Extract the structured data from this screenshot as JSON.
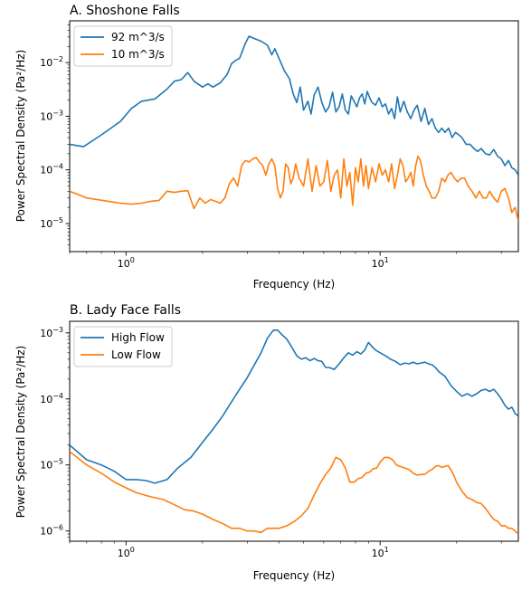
{
  "chart_data": [
    {
      "type": "line",
      "title": "A. Shoshone Falls",
      "xlabel": "Frequency (Hz)",
      "ylabel": "Power Spectral Density (Pa²/Hz)",
      "xscale": "log",
      "yscale": "log",
      "xlim": [
        0.6,
        35
      ],
      "ylim": [
        3e-06,
        0.06
      ],
      "x_tick_labels": [
        {
          "value": 1,
          "base": "10",
          "exp": "0"
        },
        {
          "value": 10,
          "base": "10",
          "exp": "1"
        }
      ],
      "y_tick_labels": [
        {
          "value": 1e-05,
          "base": "10",
          "exp": "−5"
        },
        {
          "value": 0.0001,
          "base": "10",
          "exp": "−4"
        },
        {
          "value": 0.001,
          "base": "10",
          "exp": "−3"
        },
        {
          "value": 0.01,
          "base": "10",
          "exp": "−2"
        }
      ],
      "legend_position": "top-left",
      "series": [
        {
          "name": "92 m^3/s",
          "color": "#1f77b4",
          "x": [
            0.6,
            0.68,
            0.8,
            0.95,
            1.05,
            1.15,
            1.3,
            1.45,
            1.55,
            1.65,
            1.75,
            1.85,
            2.0,
            2.1,
            2.2,
            2.35,
            2.5,
            2.6,
            2.7,
            2.8,
            2.95,
            3.05,
            3.2,
            3.4,
            3.6,
            3.75,
            3.85,
            4.0,
            4.2,
            4.4,
            4.55,
            4.7,
            4.85,
            5.0,
            5.2,
            5.35,
            5.5,
            5.7,
            5.9,
            6.1,
            6.3,
            6.5,
            6.7,
            6.9,
            7.1,
            7.3,
            7.5,
            7.7,
            7.9,
            8.1,
            8.3,
            8.5,
            8.7,
            8.9,
            9.1,
            9.3,
            9.6,
            9.9,
            10.2,
            10.5,
            10.8,
            11.1,
            11.4,
            11.7,
            12.0,
            12.4,
            12.8,
            13.2,
            13.6,
            14.0,
            14.5,
            15.0,
            15.5,
            16.0,
            16.5,
            17.0,
            17.5,
            18.0,
            18.6,
            19.2,
            19.8,
            20.4,
            21.0,
            21.8,
            22.6,
            23.4,
            24.2,
            25.0,
            26.0,
            27.0,
            28.0,
            29.0,
            30.0,
            31.0,
            32.0,
            33.0,
            34.0,
            35.0
          ],
          "y": [
            0.0003,
            0.00027,
            0.00045,
            0.0008,
            0.0014,
            0.0019,
            0.0021,
            0.0032,
            0.0045,
            0.0048,
            0.0065,
            0.0045,
            0.0035,
            0.004,
            0.0035,
            0.0042,
            0.006,
            0.0095,
            0.011,
            0.012,
            0.023,
            0.031,
            0.028,
            0.025,
            0.021,
            0.014,
            0.018,
            0.012,
            0.007,
            0.005,
            0.0026,
            0.0018,
            0.0035,
            0.0013,
            0.0019,
            0.0011,
            0.0025,
            0.0035,
            0.0018,
            0.0012,
            0.0015,
            0.0028,
            0.0012,
            0.0015,
            0.0026,
            0.0013,
            0.0011,
            0.0024,
            0.0019,
            0.0015,
            0.0022,
            0.0026,
            0.0017,
            0.0029,
            0.0022,
            0.0018,
            0.0016,
            0.0022,
            0.0015,
            0.0017,
            0.0011,
            0.0014,
            0.0009,
            0.0023,
            0.0012,
            0.0019,
            0.0012,
            0.0009,
            0.0013,
            0.0016,
            0.0008,
            0.0014,
            0.0007,
            0.0009,
            0.0006,
            0.0005,
            0.0006,
            0.0005,
            0.0006,
            0.0004,
            0.0005,
            0.00045,
            0.0004,
            0.0003,
            0.0003,
            0.00025,
            0.00022,
            0.00025,
            0.0002,
            0.00019,
            0.00024,
            0.00018,
            0.00016,
            0.00012,
            0.00015,
            0.00011,
            0.0001,
            8e-05
          ]
        },
        {
          "name": "10 m^3/s",
          "color": "#ff7f0e",
          "x": [
            0.6,
            0.7,
            0.85,
            0.95,
            1.05,
            1.15,
            1.25,
            1.35,
            1.45,
            1.55,
            1.65,
            1.75,
            1.85,
            1.95,
            2.05,
            2.15,
            2.25,
            2.35,
            2.45,
            2.55,
            2.65,
            2.75,
            2.85,
            2.95,
            3.05,
            3.15,
            3.25,
            3.35,
            3.45,
            3.55,
            3.65,
            3.75,
            3.85,
            3.95,
            4.05,
            4.15,
            4.25,
            4.35,
            4.45,
            4.55,
            4.65,
            4.8,
            5.0,
            5.2,
            5.4,
            5.6,
            5.8,
            6.0,
            6.2,
            6.4,
            6.6,
            6.8,
            7.0,
            7.2,
            7.4,
            7.6,
            7.8,
            8.0,
            8.2,
            8.4,
            8.6,
            8.8,
            9.0,
            9.3,
            9.6,
            9.9,
            10.2,
            10.5,
            10.8,
            11.1,
            11.4,
            11.7,
            12.0,
            12.3,
            12.6,
            12.9,
            13.2,
            13.5,
            13.8,
            14.1,
            14.4,
            14.8,
            15.2,
            15.6,
            16.0,
            16.5,
            17.0,
            17.5,
            18.0,
            18.5,
            19.0,
            19.6,
            20.2,
            20.8,
            21.5,
            22.2,
            23.0,
            23.8,
            24.6,
            25.4,
            26.2,
            27.0,
            28.0,
            29.0,
            30.0,
            31.0,
            32.0,
            33.0,
            34.0,
            35.0
          ],
          "y": [
            4e-05,
            3e-05,
            2.6e-05,
            2.4e-05,
            2.3e-05,
            2.4e-05,
            2.6e-05,
            2.7e-05,
            4e-05,
            3.8e-05,
            4e-05,
            4.1e-05,
            1.9e-05,
            3e-05,
            2.4e-05,
            2.8e-05,
            2.6e-05,
            2.4e-05,
            3e-05,
            5.5e-05,
            7e-05,
            5e-05,
            0.00012,
            0.00015,
            0.00014,
            0.00016,
            0.00017,
            0.00014,
            0.00012,
            8e-05,
            0.00013,
            0.00016,
            0.00012,
            4.5e-05,
            3e-05,
            4e-05,
            0.00013,
            0.00011,
            5.5e-05,
            7e-05,
            0.00013,
            7e-05,
            5e-05,
            0.00016,
            4e-05,
            0.00012,
            5e-05,
            6e-05,
            0.00015,
            4e-05,
            8e-05,
            0.0001,
            3e-05,
            0.00016,
            5e-05,
            9e-05,
            2.2e-05,
            0.00011,
            6e-05,
            0.00016,
            5e-05,
            0.00012,
            4.5e-05,
            0.00011,
            6e-05,
            0.00013,
            8e-05,
            0.0001,
            6e-05,
            0.00013,
            4.5e-05,
            8e-05,
            0.00016,
            0.00012,
            6e-05,
            7e-05,
            9e-05,
            5e-05,
            0.00012,
            0.00018,
            0.00015,
            8e-05,
            5e-05,
            4e-05,
            3e-05,
            3e-05,
            4e-05,
            7e-05,
            6e-05,
            8e-05,
            9e-05,
            7e-05,
            6e-05,
            7e-05,
            7e-05,
            5e-05,
            4e-05,
            3e-05,
            4e-05,
            3e-05,
            3e-05,
            4e-05,
            3e-05,
            2.5e-05,
            4e-05,
            4.5e-05,
            3e-05,
            1.6e-05,
            2e-05,
            1.1e-05
          ]
        }
      ]
    },
    {
      "type": "line",
      "title": "B. Lady Face Falls",
      "xlabel": "Frequency (Hz)",
      "ylabel": "Power Spectral Density (Pa²/Hz)",
      "xscale": "log",
      "yscale": "log",
      "xlim": [
        0.6,
        35
      ],
      "ylim": [
        7e-07,
        0.0015
      ],
      "x_tick_labels": [
        {
          "value": 1,
          "base": "10",
          "exp": "0"
        },
        {
          "value": 10,
          "base": "10",
          "exp": "1"
        }
      ],
      "y_tick_labels": [
        {
          "value": 1e-06,
          "base": "10",
          "exp": "−6"
        },
        {
          "value": 1e-05,
          "base": "10",
          "exp": "−5"
        },
        {
          "value": 0.0001,
          "base": "10",
          "exp": "−4"
        },
        {
          "value": 0.001,
          "base": "10",
          "exp": "−3"
        }
      ],
      "legend_position": "top-left",
      "series": [
        {
          "name": "High Flow",
          "color": "#1f77b4",
          "x": [
            0.6,
            0.7,
            0.8,
            0.9,
            1.0,
            1.1,
            1.2,
            1.3,
            1.45,
            1.6,
            1.8,
            2.0,
            2.2,
            2.4,
            2.6,
            2.8,
            3.0,
            3.2,
            3.4,
            3.6,
            3.8,
            3.95,
            4.1,
            4.3,
            4.5,
            4.7,
            4.9,
            5.1,
            5.3,
            5.5,
            5.7,
            5.9,
            6.1,
            6.3,
            6.6,
            6.9,
            7.2,
            7.5,
            7.8,
            8.1,
            8.4,
            8.7,
            9.0,
            9.3,
            9.6,
            10.0,
            10.5,
            11.0,
            11.5,
            12.0,
            12.5,
            13.0,
            13.5,
            14.0,
            14.5,
            15.0,
            15.5,
            16.0,
            16.5,
            17.0,
            18.0,
            19.0,
            20.0,
            21.0,
            22.0,
            23.0,
            24.0,
            25.0,
            26.0,
            27.0,
            28.0,
            29.0,
            30.0,
            31.0,
            32.0,
            33.0,
            34.0,
            35.0
          ],
          "y": [
            2e-05,
            1.2e-05,
            1e-05,
            8e-06,
            6e-06,
            6e-06,
            5.8e-06,
            5.3e-06,
            6e-06,
            9e-06,
            1.3e-05,
            2.2e-05,
            3.5e-05,
            5.5e-05,
            9e-05,
            0.00014,
            0.00021,
            0.00033,
            0.0005,
            0.00083,
            0.0011,
            0.0011,
            0.00095,
            0.0008,
            0.0006,
            0.00045,
            0.0004,
            0.00042,
            0.00038,
            0.00041,
            0.00038,
            0.00037,
            0.0003,
            0.0003,
            0.00028,
            0.00034,
            0.00042,
            0.0005,
            0.00046,
            0.00052,
            0.00048,
            0.00055,
            0.00072,
            0.00062,
            0.00055,
            0.0005,
            0.00045,
            0.0004,
            0.00037,
            0.00033,
            0.00035,
            0.00034,
            0.00036,
            0.00034,
            0.00035,
            0.00036,
            0.00034,
            0.00033,
            0.0003,
            0.00026,
            0.00022,
            0.00016,
            0.00013,
            0.00011,
            0.00012,
            0.00011,
            0.00012,
            0.000135,
            0.00014,
            0.00013,
            0.00014,
            0.00012,
            0.0001,
            8e-05,
            7e-05,
            7.5e-05,
            6e-05,
            5.5e-05
          ]
        },
        {
          "name": "Low Flow",
          "color": "#ff7f0e",
          "x": [
            0.6,
            0.7,
            0.8,
            0.9,
            1.0,
            1.1,
            1.25,
            1.4,
            1.55,
            1.7,
            1.85,
            2.0,
            2.2,
            2.4,
            2.6,
            2.8,
            3.0,
            3.2,
            3.4,
            3.6,
            3.8,
            4.0,
            4.3,
            4.6,
            4.9,
            5.2,
            5.5,
            5.8,
            6.1,
            6.4,
            6.7,
            7.0,
            7.3,
            7.6,
            7.9,
            8.2,
            8.5,
            8.8,
            9.1,
            9.4,
            9.7,
            10.0,
            10.4,
            10.8,
            11.2,
            11.6,
            12.0,
            12.5,
            13.0,
            13.5,
            14.0,
            14.5,
            15.0,
            15.5,
            16.0,
            16.5,
            17.0,
            17.5,
            18.0,
            18.5,
            19.0,
            19.5,
            20.0,
            21.0,
            22.0,
            23.0,
            24.0,
            25.0,
            26.0,
            27.0,
            28.0,
            29.0,
            30.0,
            31.0,
            32.0,
            33.0,
            34.0,
            35.0
          ],
          "y": [
            1.6e-05,
            1e-05,
            7.5e-06,
            5.5e-06,
            4.5e-06,
            3.8e-06,
            3.3e-06,
            3e-06,
            2.5e-06,
            2.1e-06,
            2e-06,
            1.8e-06,
            1.5e-06,
            1.3e-06,
            1.1e-06,
            1.1e-06,
            1e-06,
            1e-06,
            9.5e-07,
            1.1e-06,
            1.1e-06,
            1.1e-06,
            1.2e-06,
            1.4e-06,
            1.7e-06,
            2.2e-06,
            3.5e-06,
            5.2e-06,
            7.2e-06,
            9e-06,
            1.3e-05,
            1.2e-05,
            9e-06,
            5.5e-06,
            5.5e-06,
            6.2e-06,
            6.5e-06,
            7.5e-06,
            7.8e-06,
            8.8e-06,
            9e-06,
            1.1e-05,
            1.3e-05,
            1.3e-05,
            1.2e-05,
            1e-05,
            9.5e-06,
            9e-06,
            8.5e-06,
            7.5e-06,
            7e-06,
            7.2e-06,
            7.2e-06,
            8e-06,
            8.5e-06,
            9.5e-06,
            9.8e-06,
            9.2e-06,
            9.5e-06,
            9.8e-06,
            8.5e-06,
            7e-06,
            5.5e-06,
            4e-06,
            3.2e-06,
            3e-06,
            2.7e-06,
            2.6e-06,
            2.2e-06,
            1.8e-06,
            1.5e-06,
            1.4e-06,
            1.2e-06,
            1.2e-06,
            1.1e-06,
            1.1e-06,
            1e-06,
            9e-07
          ]
        }
      ]
    }
  ]
}
